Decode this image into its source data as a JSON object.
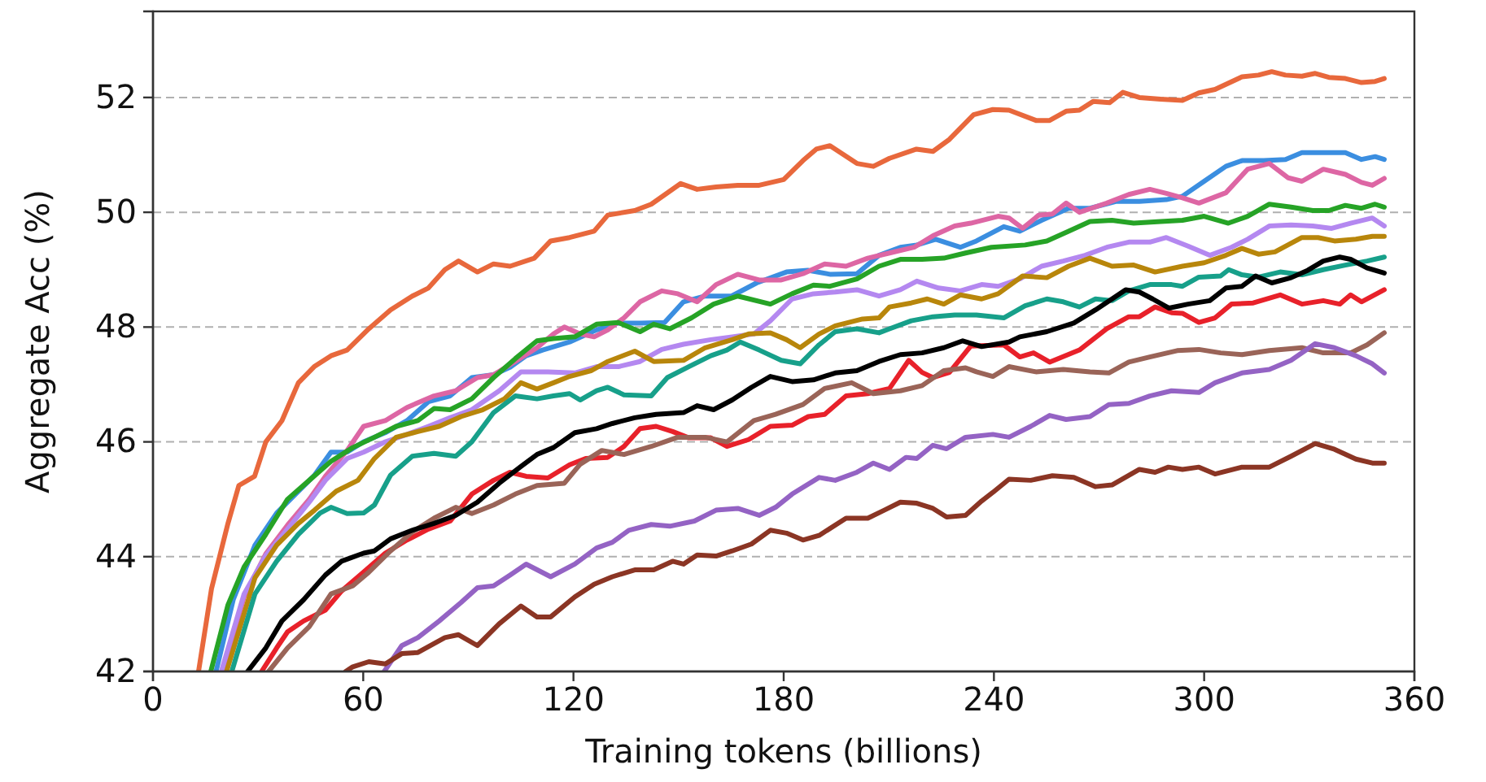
{
  "chart_data": {
    "type": "line",
    "xlabel": "Training tokens (billions)",
    "ylabel": "Aggregate Acc (%)",
    "xlim": [
      0,
      360
    ],
    "ylim": [
      42,
      53.5
    ],
    "xticks": [
      0,
      60,
      120,
      180,
      240,
      300,
      360
    ],
    "yticks": [
      42,
      44,
      46,
      48,
      50,
      52
    ],
    "grid": "y",
    "series": [
      {
        "color": "#e8683c",
        "x": [
          13,
          16.7,
          21.4,
          24.5,
          29,
          32.2,
          36.8,
          41.5,
          46,
          50.8,
          55.4,
          61.6,
          67.8,
          74,
          78.6,
          83.3,
          87.2,
          92.6,
          97.2,
          101.9,
          108.8,
          113.5,
          118.9,
          125.9,
          129.8,
          137.5,
          142.2,
          150.6,
          155.3,
          160.7,
          166.9,
          173,
          180,
          185.5,
          189.3,
          193.2,
          200.9,
          205.6,
          210.2,
          217.9,
          222.6,
          227.3,
          234.2,
          239.7,
          244.3,
          252,
          255.9,
          260.6,
          264.4,
          268.3,
          273,
          276.8,
          281.5,
          287.6,
          293.8,
          298.5,
          303.1,
          310.8,
          315.5,
          319.3,
          323.2,
          327.9,
          331.7,
          335.6,
          340.3,
          344.9,
          348.8,
          351.4
        ],
        "values": [
          42,
          43.44,
          44.58,
          45.24,
          45.4,
          46.0,
          46.37,
          47.03,
          47.31,
          47.5,
          47.6,
          47.97,
          48.3,
          48.54,
          48.68,
          49.0,
          49.15,
          48.96,
          49.1,
          49.06,
          49.2,
          49.5,
          49.56,
          49.67,
          49.95,
          50.03,
          50.14,
          50.5,
          50.4,
          50.44,
          50.47,
          50.47,
          50.57,
          50.9,
          51.1,
          51.16,
          50.85,
          50.8,
          50.94,
          51.1,
          51.06,
          51.27,
          51.7,
          51.79,
          51.78,
          51.6,
          51.6,
          51.76,
          51.78,
          51.93,
          51.91,
          52.09,
          52.0,
          51.97,
          51.95,
          52.08,
          52.14,
          52.36,
          52.39,
          52.45,
          52.39,
          52.37,
          52.42,
          52.35,
          52.33,
          52.26,
          52.28,
          52.33
        ]
      },
      {
        "color": "#3b8ee0",
        "x": [
          18,
          22.9,
          29.1,
          35.3,
          41.5,
          46.1,
          50.8,
          55.4,
          60.1,
          66.3,
          72.5,
          78.6,
          84.8,
          91,
          97.2,
          101.9,
          106.5,
          111.2,
          118.9,
          126.6,
          132.8,
          139,
          146,
          151.4,
          157.6,
          165.1,
          172.3,
          180.8,
          186.9,
          193.2,
          200.9,
          207.2,
          213.3,
          218,
          223.4,
          230.4,
          235,
          242.8,
          247.4,
          253.6,
          261.3,
          267.4,
          275,
          281.5,
          289.2,
          293.8,
          300,
          306.2,
          310.8,
          317,
          323.2,
          327.9,
          334,
          340.3,
          344.9,
          348.8,
          351.4
        ],
        "values": [
          42,
          43.25,
          44.2,
          44.76,
          45.14,
          45.42,
          45.82,
          45.82,
          46.0,
          46.16,
          46.37,
          46.7,
          46.8,
          47.12,
          47.17,
          47.3,
          47.5,
          47.6,
          47.74,
          47.95,
          48.07,
          48.07,
          48.08,
          48.44,
          48.54,
          48.54,
          48.77,
          48.96,
          48.99,
          48.92,
          48.93,
          49.25,
          49.39,
          49.43,
          49.53,
          49.39,
          49.5,
          49.75,
          49.67,
          49.86,
          50.07,
          50.07,
          50.19,
          50.19,
          50.22,
          50.28,
          50.54,
          50.8,
          50.9,
          50.9,
          50.92,
          51.04,
          51.04,
          51.04,
          50.92,
          50.97,
          50.92
        ]
      },
      {
        "color": "#dd66a4",
        "x": [
          20,
          26,
          32.2,
          38.4,
          44.6,
          49.2,
          55.4,
          60.1,
          66.3,
          72.5,
          80.2,
          86.4,
          92.6,
          97.2,
          103.4,
          109.6,
          114.3,
          117.4,
          121.9,
          125.9,
          129.8,
          134.4,
          139,
          145.2,
          149.8,
          155.3,
          160.7,
          166.9,
          173,
          179.3,
          185.5,
          191.7,
          197.8,
          204,
          210.2,
          217.2,
          222.6,
          228.8,
          233.4,
          241.2,
          244.3,
          248.2,
          252.8,
          256.7,
          260.6,
          264.4,
          272.2,
          278.5,
          284.5,
          289.2,
          293.8,
          298.5,
          306.2,
          312.4,
          318.6,
          324,
          327.9,
          334,
          340.3,
          344.9,
          348,
          351.4
        ],
        "values": [
          42,
          43.3,
          44.05,
          44.55,
          45.0,
          45.4,
          45.85,
          46.27,
          46.37,
          46.6,
          46.8,
          46.89,
          47.12,
          47.17,
          47.4,
          47.64,
          47.88,
          48.0,
          47.88,
          47.83,
          47.95,
          48.16,
          48.44,
          48.63,
          48.58,
          48.44,
          48.74,
          48.92,
          48.82,
          48.82,
          48.93,
          49.1,
          49.06,
          49.2,
          49.29,
          49.39,
          49.59,
          49.76,
          49.81,
          49.93,
          49.9,
          49.72,
          49.95,
          49.97,
          50.16,
          50.0,
          50.16,
          50.31,
          50.4,
          50.33,
          50.25,
          50.16,
          50.34,
          50.75,
          50.85,
          50.6,
          50.54,
          50.75,
          50.66,
          50.52,
          50.47,
          50.59
        ]
      },
      {
        "color": "#26a326",
        "x": [
          16.5,
          21.4,
          26,
          32.2,
          38.4,
          44.6,
          50.8,
          57,
          63.2,
          69.4,
          75.6,
          80.2,
          84.8,
          91,
          97.2,
          103.4,
          109.6,
          114.3,
          120.4,
          126.6,
          132.8,
          139,
          142.9,
          147.5,
          153.7,
          160,
          166.9,
          176.2,
          182.4,
          188.5,
          193.2,
          200.9,
          207.2,
          213.3,
          219.5,
          225.7,
          231.9,
          239.3,
          248.9,
          255.1,
          261.3,
          267.4,
          273.7,
          279.9,
          287.6,
          293.8,
          300,
          306.9,
          312.4,
          318.6,
          324.8,
          331,
          335.6,
          340.3,
          344.9,
          348.8,
          351.4
        ],
        "values": [
          42,
          43.16,
          43.82,
          44.39,
          45.0,
          45.33,
          45.66,
          45.9,
          46.08,
          46.27,
          46.37,
          46.58,
          46.56,
          46.75,
          47.12,
          47.45,
          47.76,
          47.8,
          47.83,
          48.05,
          48.08,
          47.92,
          48.05,
          47.97,
          48.16,
          48.4,
          48.54,
          48.4,
          48.58,
          48.73,
          48.71,
          48.84,
          49.06,
          49.18,
          49.18,
          49.2,
          49.29,
          49.39,
          49.43,
          49.5,
          49.67,
          49.84,
          49.86,
          49.81,
          49.84,
          49.86,
          49.93,
          49.81,
          49.93,
          50.14,
          50.09,
          50.03,
          50.03,
          50.12,
          50.07,
          50.14,
          50.09
        ]
      },
      {
        "color": "#b488f0",
        "x": [
          19.5,
          26,
          32.2,
          38.4,
          44.6,
          49.2,
          55.4,
          60.1,
          66.3,
          72.5,
          78.6,
          84.8,
          91,
          98.8,
          105,
          112.7,
          120.4,
          126.6,
          132.8,
          139,
          145.2,
          151.4,
          159.2,
          165.3,
          171.5,
          176.2,
          182.4,
          188.5,
          194.7,
          200.9,
          207.2,
          213.3,
          218,
          224.2,
          230.4,
          236.5,
          241.2,
          247.4,
          253.6,
          259.8,
          266,
          272.2,
          278.5,
          284.5,
          289.2,
          295.4,
          301.6,
          307.8,
          312.4,
          318.6,
          324.8,
          331,
          336.4,
          341.8,
          348,
          351.4
        ],
        "values": [
          42,
          43.35,
          44.02,
          44.48,
          44.95,
          45.33,
          45.71,
          45.82,
          46.0,
          46.13,
          46.27,
          46.42,
          46.56,
          46.89,
          47.22,
          47.22,
          47.2,
          47.31,
          47.31,
          47.4,
          47.61,
          47.7,
          47.78,
          47.83,
          47.88,
          48.11,
          48.49,
          48.58,
          48.61,
          48.65,
          48.54,
          48.65,
          48.8,
          48.68,
          48.63,
          48.74,
          48.71,
          48.84,
          49.06,
          49.15,
          49.25,
          49.39,
          49.48,
          49.48,
          49.56,
          49.41,
          49.25,
          49.39,
          49.53,
          49.76,
          49.78,
          49.76,
          49.72,
          49.81,
          49.9,
          49.76
        ]
      },
      {
        "color": "#b8860b",
        "x": [
          21,
          29.1,
          35.3,
          41.5,
          46.1,
          52.3,
          58.5,
          63.2,
          69.4,
          75.6,
          81.7,
          87.9,
          94.1,
          100.3,
          105,
          109.6,
          114.3,
          118.9,
          125,
          129.8,
          137.5,
          142.9,
          151.4,
          157.6,
          165.3,
          170,
          176.2,
          180.8,
          184.7,
          190.1,
          194.7,
          202.5,
          207.2,
          210.2,
          216.4,
          221,
          225.7,
          230.4,
          236.5,
          241.2,
          248.2,
          255.1,
          261.3,
          267.4,
          273.7,
          279.9,
          286,
          293.8,
          300,
          306.2,
          310.8,
          315.5,
          320.2,
          327.9,
          332.5,
          337.2,
          343.3,
          348,
          351.4
        ],
        "values": [
          42,
          43.63,
          44.2,
          44.58,
          44.81,
          45.14,
          45.33,
          45.71,
          46.08,
          46.18,
          46.27,
          46.44,
          46.56,
          46.75,
          47.03,
          46.92,
          47.03,
          47.14,
          47.24,
          47.4,
          47.58,
          47.4,
          47.42,
          47.64,
          47.78,
          47.88,
          47.9,
          47.78,
          47.64,
          47.88,
          48.02,
          48.14,
          48.16,
          48.35,
          48.42,
          48.49,
          48.4,
          48.56,
          48.49,
          48.58,
          48.89,
          48.86,
          49.06,
          49.2,
          49.06,
          49.08,
          48.96,
          49.06,
          49.12,
          49.25,
          49.37,
          49.27,
          49.31,
          49.56,
          49.56,
          49.5,
          49.53,
          49.58,
          49.58
        ]
      },
      {
        "color": "#17a08a",
        "x": [
          22.5,
          29.1,
          35.3,
          41.5,
          47.7,
          50.8,
          55.4,
          60.1,
          63.2,
          67.8,
          74,
          80.2,
          86.4,
          91,
          97.2,
          103.4,
          109.6,
          114.3,
          118.9,
          121.9,
          126.6,
          129.8,
          134.4,
          142.2,
          146.8,
          152.9,
          159.2,
          163.8,
          167.6,
          173,
          179.3,
          184.7,
          190.1,
          194.7,
          200.9,
          207.2,
          210.2,
          216.4,
          222.6,
          228.8,
          235,
          242.8,
          248.9,
          255.1,
          259.8,
          264.4,
          269,
          273.7,
          278.5,
          284.5,
          290.7,
          293.8,
          298.5,
          304.7,
          307,
          310.8,
          315.5,
          321.7,
          327.9,
          334,
          340.3,
          346.5,
          351.4
        ],
        "values": [
          42,
          43.35,
          43.92,
          44.39,
          44.76,
          44.86,
          44.75,
          44.76,
          44.9,
          45.42,
          45.75,
          45.8,
          45.75,
          46.0,
          46.51,
          46.8,
          46.75,
          46.8,
          46.84,
          46.73,
          46.89,
          46.95,
          46.82,
          46.8,
          47.12,
          47.31,
          47.5,
          47.6,
          47.74,
          47.6,
          47.42,
          47.36,
          47.69,
          47.92,
          47.97,
          47.9,
          47.97,
          48.11,
          48.18,
          48.21,
          48.21,
          48.16,
          48.37,
          48.49,
          48.44,
          48.35,
          48.49,
          48.46,
          48.63,
          48.74,
          48.74,
          48.71,
          48.87,
          48.89,
          49.0,
          48.91,
          48.87,
          48.96,
          48.91,
          49.0,
          49.08,
          49.15,
          49.22
        ]
      },
      {
        "color": "#e8212a",
        "x": [
          31,
          35.3,
          38.4,
          43,
          49.2,
          53.8,
          60.1,
          66.3,
          72.5,
          78.6,
          84.8,
          91,
          97.2,
          101.9,
          106.5,
          112.7,
          118.9,
          123.5,
          129.8,
          134.4,
          139,
          143.6,
          148.3,
          152.9,
          159.2,
          163.8,
          170,
          176.2,
          182.4,
          187,
          191.7,
          197.8,
          204,
          210.2,
          215.7,
          219.5,
          222.6,
          227.3,
          233.4,
          242.8,
          247.4,
          251.3,
          255.9,
          264.4,
          272.2,
          278.5,
          281.5,
          286,
          290.7,
          293.8,
          298.5,
          303.1,
          307.8,
          314,
          321.7,
          327.9,
          334,
          338.7,
          341.8,
          344.9,
          351.4
        ],
        "values": [
          42,
          42.41,
          42.69,
          42.88,
          43.07,
          43.4,
          43.73,
          44.06,
          44.29,
          44.48,
          44.62,
          45.09,
          45.33,
          45.47,
          45.4,
          45.37,
          45.6,
          45.71,
          45.73,
          45.92,
          46.23,
          46.27,
          46.18,
          46.07,
          46.07,
          45.92,
          46.04,
          46.27,
          46.29,
          46.44,
          46.48,
          46.8,
          46.84,
          46.93,
          47.42,
          47.21,
          47.12,
          47.21,
          47.67,
          47.69,
          47.48,
          47.55,
          47.39,
          47.6,
          47.97,
          48.18,
          48.18,
          48.35,
          48.25,
          48.24,
          48.08,
          48.16,
          48.4,
          48.42,
          48.56,
          48.4,
          48.46,
          48.4,
          48.56,
          48.44,
          48.65
        ]
      },
      {
        "color": "#9a6458",
        "x": [
          33,
          38.4,
          44.6,
          50.8,
          57,
          61.6,
          67.8,
          74,
          80.2,
          86.4,
          91,
          97.2,
          103.4,
          109.6,
          117.4,
          121.9,
          128.1,
          134.4,
          142.2,
          149.8,
          157.6,
          163.8,
          171.5,
          177.7,
          185.5,
          191.7,
          199.4,
          205.6,
          213.3,
          219.5,
          225.7,
          231.9,
          235,
          239.7,
          244.3,
          252,
          259.8,
          267.4,
          272.8,
          278.5,
          284.5,
          292.3,
          298.5,
          304.7,
          310.8,
          318.6,
          327.9,
          334,
          341.8,
          346.5,
          351.4
        ],
        "values": [
          42,
          42.41,
          42.78,
          43.35,
          43.49,
          43.73,
          44.1,
          44.43,
          44.67,
          44.86,
          44.75,
          44.9,
          45.09,
          45.24,
          45.28,
          45.61,
          45.85,
          45.78,
          45.92,
          46.08,
          46.08,
          46.0,
          46.37,
          46.48,
          46.65,
          46.93,
          47.03,
          46.84,
          46.89,
          46.98,
          47.24,
          47.29,
          47.22,
          47.14,
          47.31,
          47.22,
          47.26,
          47.22,
          47.2,
          47.39,
          47.48,
          47.59,
          47.61,
          47.55,
          47.52,
          47.59,
          47.64,
          47.55,
          47.55,
          47.69,
          47.9
        ]
      },
      {
        "color": "#9463c4",
        "x": [
          66,
          71,
          75.6,
          81.7,
          87.9,
          92.6,
          97.2,
          101.9,
          106.5,
          113.5,
          120.4,
          126.6,
          131.1,
          135.8,
          142.2,
          147.5,
          154.5,
          160.7,
          166.9,
          173,
          177.7,
          182.4,
          190.1,
          194.7,
          200.9,
          205.6,
          210.2,
          214.9,
          218,
          222.6,
          226.5,
          231.9,
          239.7,
          244.3,
          250.5,
          255.9,
          260.6,
          267.4,
          272.8,
          278.5,
          284.5,
          290.7,
          298.5,
          303.1,
          310.8,
          318.6,
          324.8,
          331.7,
          337.2,
          343.3,
          348,
          351.4
        ],
        "values": [
          42,
          42.45,
          42.59,
          42.88,
          43.2,
          43.46,
          43.49,
          43.68,
          43.87,
          43.65,
          43.87,
          44.15,
          44.25,
          44.46,
          44.56,
          44.53,
          44.62,
          44.81,
          44.84,
          44.72,
          44.86,
          45.09,
          45.38,
          45.33,
          45.47,
          45.63,
          45.52,
          45.73,
          45.71,
          45.94,
          45.88,
          46.08,
          46.13,
          46.08,
          46.27,
          46.46,
          46.39,
          46.44,
          46.65,
          46.67,
          46.8,
          46.89,
          46.86,
          47.03,
          47.2,
          47.26,
          47.42,
          47.71,
          47.64,
          47.5,
          47.36,
          47.2
        ]
      },
      {
        "color": "#8b3524",
        "x": [
          55,
          57,
          61.6,
          66.3,
          71,
          75.6,
          83.3,
          87.2,
          92.6,
          98.8,
          105,
          109.6,
          113.5,
          120.4,
          125.9,
          131.1,
          137.5,
          142.9,
          148.3,
          151.4,
          155.3,
          160.7,
          165.3,
          170.8,
          176.2,
          180.8,
          185.5,
          190.1,
          197.8,
          204,
          208.7,
          213.3,
          218,
          222.6,
          226.5,
          231.9,
          236.5,
          239.7,
          244.3,
          250.5,
          256.7,
          262.8,
          269,
          273.7,
          281.5,
          286,
          289.8,
          293.8,
          298.5,
          303.1,
          310.8,
          318.6,
          324.8,
          331.7,
          337.2,
          343.3,
          348,
          351.4
        ],
        "values": [
          42,
          42.08,
          42.17,
          42.13,
          42.31,
          42.33,
          42.59,
          42.64,
          42.45,
          42.83,
          43.14,
          42.95,
          42.95,
          43.3,
          43.52,
          43.65,
          43.77,
          43.77,
          43.92,
          43.87,
          44.03,
          44.01,
          44.1,
          44.22,
          44.46,
          44.41,
          44.29,
          44.37,
          44.67,
          44.67,
          44.81,
          44.95,
          44.93,
          44.84,
          44.69,
          44.72,
          44.97,
          45.12,
          45.35,
          45.33,
          45.41,
          45.38,
          45.22,
          45.25,
          45.52,
          45.47,
          45.56,
          45.52,
          45.56,
          45.44,
          45.56,
          45.56,
          45.75,
          45.97,
          45.87,
          45.7,
          45.63,
          45.63
        ]
      },
      {
        "color": "#000000",
        "x": [
          27,
          32.2,
          36.8,
          43,
          49.2,
          53.8,
          60.1,
          63.2,
          67.8,
          74,
          80.2,
          86.4,
          92.6,
          98.8,
          105,
          109.6,
          114.3,
          120.4,
          126.6,
          131.1,
          137.5,
          143.6,
          151.4,
          155.3,
          160,
          165.3,
          170.8,
          176.2,
          182.4,
          188.5,
          194.7,
          200.9,
          207.2,
          213.3,
          219.5,
          225.7,
          231.1,
          236.5,
          244.3,
          247.4,
          255.1,
          262.8,
          269,
          273.7,
          277.6,
          281.5,
          285.3,
          290,
          295.4,
          301.6,
          306.2,
          310.8,
          314.7,
          319.3,
          324.8,
          329.6,
          334,
          338.7,
          341.8,
          346.5,
          351.4
        ],
        "values": [
          42,
          42.41,
          42.88,
          43.25,
          43.68,
          43.92,
          44.06,
          44.1,
          44.31,
          44.46,
          44.58,
          44.72,
          44.95,
          45.28,
          45.57,
          45.78,
          45.9,
          46.16,
          46.23,
          46.32,
          46.42,
          46.48,
          46.51,
          46.63,
          46.56,
          46.73,
          46.95,
          47.14,
          47.05,
          47.08,
          47.2,
          47.24,
          47.4,
          47.52,
          47.55,
          47.64,
          47.76,
          47.66,
          47.74,
          47.83,
          47.92,
          48.07,
          48.3,
          48.49,
          48.65,
          48.61,
          48.49,
          48.33,
          48.4,
          48.46,
          48.68,
          48.71,
          48.89,
          48.77,
          48.86,
          48.99,
          49.15,
          49.22,
          49.18,
          49.03,
          48.94
        ]
      }
    ]
  }
}
